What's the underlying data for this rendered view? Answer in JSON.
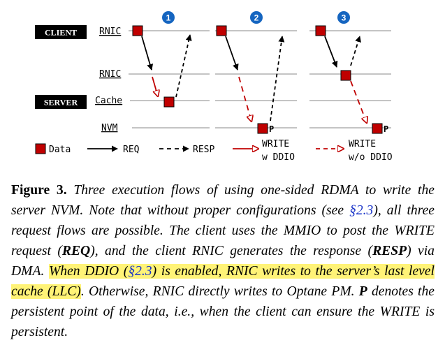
{
  "figure": {
    "roles": {
      "client": "CLIENT",
      "server": "SERVER"
    },
    "rows": {
      "client_rnic": "RNIC",
      "server_rnic": "RNIC",
      "cache": "Cache",
      "nvm": "NVM"
    },
    "flows": [
      {
        "number": "1",
        "persist_marker": ""
      },
      {
        "number": "2",
        "persist_marker": "P"
      },
      {
        "number": "3",
        "persist_marker": "P"
      }
    ],
    "legend": {
      "data": "Data",
      "req": "REQ",
      "resp": "RESP",
      "write_ddio_line1": "WRITE",
      "write_ddio_line2": "w DDIO",
      "write_noddio_line1": "WRITE",
      "write_noddio_line2": "w/o DDIO"
    },
    "colors": {
      "data_square": "#c00000",
      "badge": "#1565c0",
      "ddio_arrow": "#c00000",
      "role_box": "#000000"
    }
  },
  "caption": {
    "label": "Figure 3.",
    "t1": " Three execution flows of using one-sided RDMA to write the server NVM. Note that without proper configurations (see ",
    "ref1": "§2.3",
    "t2": "), all three request flows are possible. The client uses the MMIO to post the WRITE request (",
    "req": "REQ",
    "t3": "), and the client RNIC generates the response (",
    "resp": "RESP",
    "t4": ") via DMA. ",
    "hl_a": "When DDIO (",
    "hl_ref": "§2.3",
    "hl_b": ") is enabled, RNIC writes to the server’s last level cache (LLC)",
    "t5": ". Otherwise, RNIC directly writes to Optane PM. ",
    "p": "P",
    "t6": " denotes the persistent point of the data, i.e., when the client can ensure the WRITE is persistent."
  }
}
